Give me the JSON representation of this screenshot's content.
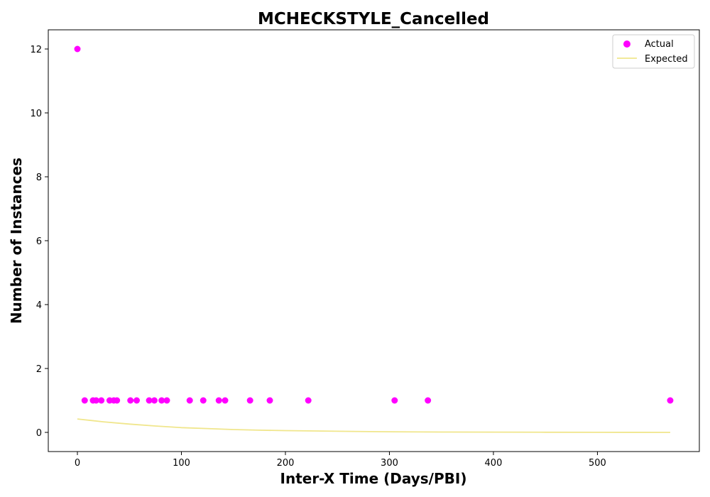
{
  "chart_data": {
    "type": "scatter",
    "title": "MCHECKSTYLE_Cancelled",
    "xlabel": "Inter-X Time (Days/PBI)",
    "ylabel": "Number of Instances",
    "xlim": [
      -28,
      598
    ],
    "ylim": [
      -0.6,
      12.6
    ],
    "xticks": [
      0,
      100,
      200,
      300,
      400,
      500
    ],
    "yticks": [
      0,
      2,
      4,
      6,
      8,
      10,
      12
    ],
    "grid": false,
    "legend_position": "top-right",
    "series": [
      {
        "name": "Actual",
        "kind": "scatter",
        "color": "#ff00ff",
        "x": [
          0,
          7,
          15,
          18,
          23,
          31,
          35,
          38,
          51,
          57,
          69,
          74,
          81,
          86,
          108,
          121,
          136,
          142,
          166,
          185,
          222,
          305,
          337,
          570
        ],
        "y": [
          12,
          1,
          1,
          1,
          1,
          1,
          1,
          1,
          1,
          1,
          1,
          1,
          1,
          1,
          1,
          1,
          1,
          1,
          1,
          1,
          1,
          1,
          1,
          1
        ]
      },
      {
        "name": "Expected",
        "kind": "line",
        "color": "#f0e68c",
        "x": [
          0,
          25,
          50,
          75,
          100,
          125,
          150,
          175,
          200,
          250,
          300,
          350,
          400,
          450,
          500,
          570
        ],
        "y": [
          0.42,
          0.33,
          0.26,
          0.2,
          0.15,
          0.12,
          0.09,
          0.07,
          0.055,
          0.035,
          0.02,
          0.012,
          0.008,
          0.005,
          0.003,
          0.001
        ]
      }
    ]
  }
}
